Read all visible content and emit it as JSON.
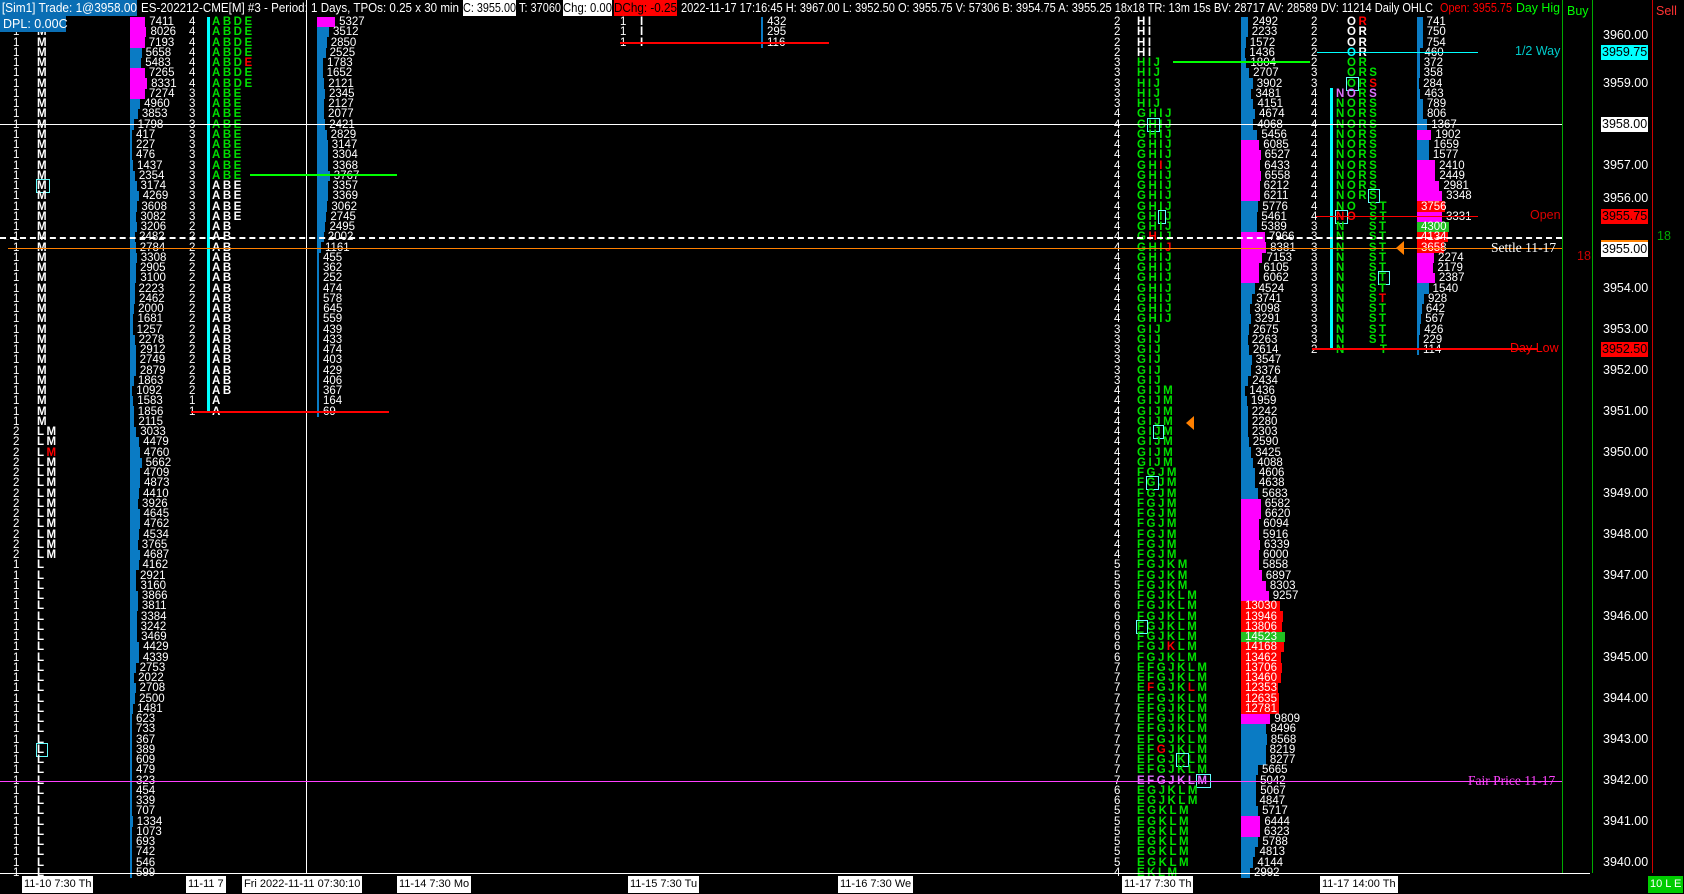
{
  "header": {
    "sim_trade": "[Sim1]  Trade: 1@3958.00",
    "symbol_info": "ES-202212-CME[M]  #3 - Period: 1 Days, TPOs: 0.25 x 30 min",
    "close": "C: 3955.00",
    "ticks": "T: 37060",
    "chg": "Chg: 0.00",
    "dchg": "DChg: -0.25",
    "stats": "2022-11-17 17:16:45 H: 3967.00 L: 3952.50 O: 3955.75 V: 57306 B: 3954.75 A: 3955.25 18x18 TR: 13m 15s BV: 28717 AV: 28589 DV: 11214 Daily OHLC",
    "open_label": "Open: 3955.75",
    "day_high_label": "Day Hig",
    "buy": "Buy",
    "sell": "Sell",
    "dpl": "DPL: 0.00C"
  },
  "colors": {
    "green": "#00e000",
    "red": "#ff0000",
    "blue": "#0a7bc4",
    "magenta": "#ff00ff",
    "cyan": "#00ffff",
    "orange": "#ff8000",
    "violet": "#e070ff"
  },
  "profiles": [
    {
      "name": "profile-11-10",
      "top_price": 3960.5,
      "tpo_color": "white",
      "tpo_segments": [
        {
          "n": 40,
          "count": "1",
          "letters": "M"
        },
        {
          "n": 13,
          "count": "2",
          "letters": "LM"
        },
        {
          "n": 31,
          "count": "1",
          "letters": "L"
        }
      ],
      "white_rows_from": 0,
      "specials": [
        {
          "row": 42,
          "pos": 1,
          "color": "red"
        },
        {
          "row": 16,
          "pos": 0,
          "box": true
        },
        {
          "row": 71,
          "pos": 0,
          "box": true
        }
      ],
      "volumes": [
        7411,
        8026,
        7193,
        5658,
        5483,
        7265,
        8331,
        7274,
        4960,
        3853,
        1798,
        417,
        227,
        476,
        1437,
        2354,
        3174,
        4269,
        3608,
        3082,
        3206,
        2482,
        2784,
        3308,
        2905,
        3100,
        2223,
        2462,
        2000,
        1681,
        1257,
        2278,
        2912,
        2749,
        2879,
        1863,
        1092,
        1583,
        1856,
        2115,
        3033,
        4479,
        4760,
        5662,
        4709,
        4873,
        4410,
        3926,
        4645,
        4762,
        4534,
        3765,
        4687,
        4162,
        2921,
        3160,
        3866,
        3811,
        3384,
        3242,
        3469,
        4429,
        4339,
        2753,
        2022,
        2708,
        2500,
        1481,
        623,
        733,
        367,
        389,
        609,
        479,
        323,
        454,
        339,
        707,
        1334,
        1073,
        693,
        742,
        546,
        599
      ],
      "magenta_rows": [
        0,
        1,
        2,
        5,
        6,
        7
      ],
      "red_rows": [],
      "green_rows": []
    },
    {
      "name": "profile-11-11",
      "top_price": 3960.5,
      "tpo_color": "green",
      "tpo_segments": [
        {
          "n": 7,
          "count": "4",
          "letters": "ABDE"
        },
        {
          "n": 13,
          "count": "3",
          "letters": "ABE"
        },
        {
          "n": 17,
          "count": "2",
          "letters": "AB"
        },
        {
          "n": 2,
          "count": "1",
          "letters": "A"
        }
      ],
      "white_rows_from": 16,
      "specials": [
        {
          "row": 4,
          "pos": 3,
          "color": "red"
        }
      ],
      "volumes": [
        5327,
        3512,
        2850,
        2525,
        1783,
        1652,
        2121,
        2345,
        2127,
        2077,
        2421,
        2829,
        3147,
        3304,
        3368,
        3767,
        3357,
        3369,
        3062,
        2745,
        2495,
        2002,
        1161,
        455,
        362,
        252,
        474,
        578,
        645,
        559,
        439,
        433,
        474,
        403,
        429,
        406,
        367,
        164,
        69
      ],
      "magenta_rows": [
        0
      ],
      "red_rows": [],
      "green_rows": []
    },
    {
      "name": "profile-11-15",
      "top_price": 3960.5,
      "tpo_color": "white",
      "tpo_segments": [
        {
          "n": 3,
          "count": "1",
          "letters": "I"
        }
      ],
      "white_rows_from": 0,
      "specials": [],
      "volumes": [
        432,
        295,
        116
      ],
      "magenta_rows": [],
      "red_rows": [],
      "green_rows": []
    },
    {
      "name": "profile-11-17-day",
      "top_price": 3960.5,
      "tpo_color": "green",
      "tpo_segments": [
        {
          "n": 4,
          "count": "2",
          "letters": "HI"
        },
        {
          "n": 5,
          "count": "3",
          "letters": "HIJ"
        },
        {
          "n": 21,
          "count": "4",
          "letters": "GHIJ"
        },
        {
          "n": 6,
          "count": "3",
          "letters": "GIJ"
        },
        {
          "n": 8,
          "count": "4",
          "letters": "GIJM"
        },
        {
          "n": 9,
          "count": "4",
          "letters": "FGJM"
        },
        {
          "n": 3,
          "count": "5",
          "letters": "FGJKM"
        },
        {
          "n": 7,
          "count": "6",
          "letters": "FGJKLM"
        },
        {
          "n": 12,
          "count": "7",
          "letters": "EFGJKLM"
        },
        {
          "n": 2,
          "count": "6",
          "letters": "EGJKLM"
        },
        {
          "n": 6,
          "count": "5",
          "letters": "EGKLM"
        },
        {
          "n": 1,
          "count": "4",
          "letters": "EKLM"
        }
      ],
      "white_rows_to": 3,
      "specials": [
        {
          "row": 10,
          "pos": 1,
          "box": true
        },
        {
          "row": 14,
          "pos": 2,
          "color": "red"
        },
        {
          "row": 19,
          "pos": 2,
          "box": true
        },
        {
          "row": 21,
          "pos": 1,
          "color": "red"
        },
        {
          "row": 22,
          "pos": 3,
          "color": "red"
        },
        {
          "row": 40,
          "pos": 2,
          "box": true
        },
        {
          "row": 45,
          "pos": 1,
          "box": true
        },
        {
          "row": 59,
          "pos": 0,
          "box": true
        },
        {
          "row": 61,
          "pos": 3,
          "color": "red"
        },
        {
          "row": 65,
          "pos": 1,
          "color": "red"
        },
        {
          "row": 65,
          "pos": 5,
          "color": "red"
        },
        {
          "row": 71,
          "pos": 2,
          "color": "red"
        },
        {
          "row": 72,
          "pos": 4,
          "box": true
        },
        {
          "row": 74,
          "pos": -1,
          "color": "violet"
        },
        {
          "row": 74,
          "pos": 6,
          "box": true
        }
      ],
      "volumes": [
        2492,
        2233,
        1572,
        1436,
        1804,
        2707,
        3902,
        3481,
        4151,
        4674,
        4068,
        5456,
        6085,
        6527,
        6433,
        6558,
        6212,
        6211,
        5776,
        5461,
        5389,
        7966,
        8381,
        7153,
        6105,
        6062,
        4524,
        3741,
        3098,
        3291,
        2675,
        2263,
        2614,
        3547,
        3376,
        2434,
        1436,
        1959,
        2242,
        2280,
        2303,
        2590,
        3425,
        4088,
        4606,
        4638,
        5683,
        6582,
        6620,
        6094,
        5916,
        6339,
        6000,
        5858,
        6897,
        8303,
        9257,
        13030,
        13946,
        13806,
        14523,
        14168,
        13462,
        13706,
        13460,
        12353,
        12635,
        12781,
        9809,
        8496,
        8568,
        8219,
        8277,
        5665,
        5042,
        5067,
        4847,
        5717,
        6444,
        6323,
        5788,
        4813,
        4144,
        2992
      ],
      "magenta_rows": [
        12,
        13,
        14,
        15,
        16,
        17,
        21,
        22,
        23,
        24,
        25,
        47,
        48,
        49,
        50,
        51,
        52,
        53,
        54,
        55,
        56,
        68,
        78,
        79
      ],
      "red_rows": [
        57,
        58,
        59,
        61,
        62,
        63,
        64,
        65,
        66,
        67
      ],
      "green_rows": [
        60
      ]
    },
    {
      "name": "profile-11-17-late",
      "top_price": 3960.5,
      "tpo_color": "green",
      "tpo_segments": [
        {
          "n": 5,
          "count": "2",
          "letters": " OR"
        },
        {
          "n": 2,
          "count": "3",
          "letters": " ORS"
        },
        {
          "n": 11,
          "count": "4",
          "letters": "NORS"
        },
        {
          "n": 2,
          "count": "4",
          "letters": "NO ST"
        },
        {
          "n": 12,
          "count": "3",
          "letters": "N  ST"
        },
        {
          "n": 1,
          "count": "2",
          "letters": "N   T"
        }
      ],
      "white_rows_to": 3,
      "specials": [
        {
          "row": 0,
          "pos": 2,
          "color": "red"
        },
        {
          "row": 3,
          "pos": 1,
          "color": "cyan"
        },
        {
          "row": 6,
          "pos": 1,
          "box": true
        },
        {
          "row": 6,
          "pos": 3,
          "color": "red"
        },
        {
          "row": 7,
          "pos": 0,
          "color": "violet"
        },
        {
          "row": 7,
          "pos": 1,
          "color": "violet"
        },
        {
          "row": 7,
          "pos": 3,
          "color": "violet"
        },
        {
          "row": 17,
          "pos": 3,
          "box": true
        },
        {
          "row": 19,
          "pos": 0,
          "color": "red",
          "box": true
        },
        {
          "row": 19,
          "pos": 1,
          "color": "red"
        },
        {
          "row": 25,
          "pos": 4,
          "box": true
        },
        {
          "row": 27,
          "pos": 4,
          "color": "red"
        }
      ],
      "volumes": [
        741,
        750,
        754,
        460,
        372,
        358,
        284,
        463,
        789,
        806,
        1367,
        1902,
        1659,
        1577,
        2410,
        2449,
        2981,
        3348,
        3756,
        3331,
        4300,
        4134,
        3658,
        2274,
        2179,
        2387,
        1540,
        928,
        642,
        567,
        426,
        229,
        114
      ],
      "magenta_rows": [
        11,
        14,
        15,
        16,
        17,
        19,
        23,
        24,
        25
      ],
      "red_rows": [
        18,
        21,
        22
      ],
      "green_rows": [
        20
      ]
    }
  ],
  "price_axis": {
    "ticks": [
      "3960.00",
      "3959.00",
      "3958.00",
      "3957.00",
      "3956.00",
      "3955.00",
      "3954.00",
      "3953.00",
      "3952.00",
      "3951.00",
      "3950.00",
      "3949.00",
      "3948.00",
      "3947.00",
      "3946.00",
      "3945.00",
      "3944.00",
      "3943.00",
      "3942.00",
      "3941.00",
      "3940.00"
    ],
    "markers": [
      {
        "price": "3959.75",
        "bg": "#00ffff",
        "fg": "#000000"
      },
      {
        "price": "3958.00",
        "bg": "#ffffff",
        "fg": "#000000"
      },
      {
        "price": "3955.75",
        "bg": "#ff0000",
        "fg": "#000000"
      },
      {
        "price": "3955.00",
        "bg": "#ffffff",
        "fg": "#000000"
      },
      {
        "price": "3952.50",
        "bg": "#ff0000",
        "fg": "#000000"
      }
    ],
    "bar_count_red": "18",
    "bar_count_green": "18"
  },
  "reference_lines": {
    "half_way": "1/2 Way",
    "open": "Open",
    "settle": "Settle 11-17",
    "day_low": "Day Low",
    "fair_price": "Fair Price 11-17"
  },
  "time_axis": {
    "labels": [
      "11-10  7:30 Th",
      "11-11  7",
      "11-14  7:30 Mo",
      "11-15  7:30 Tu",
      "11-16  7:30 We",
      "11-17  7:30 Th",
      "11-17  14:00 Th"
    ],
    "crosshair_time": "Fri 2022-11-11  07:30:10",
    "trade_mode": "10 L E"
  }
}
